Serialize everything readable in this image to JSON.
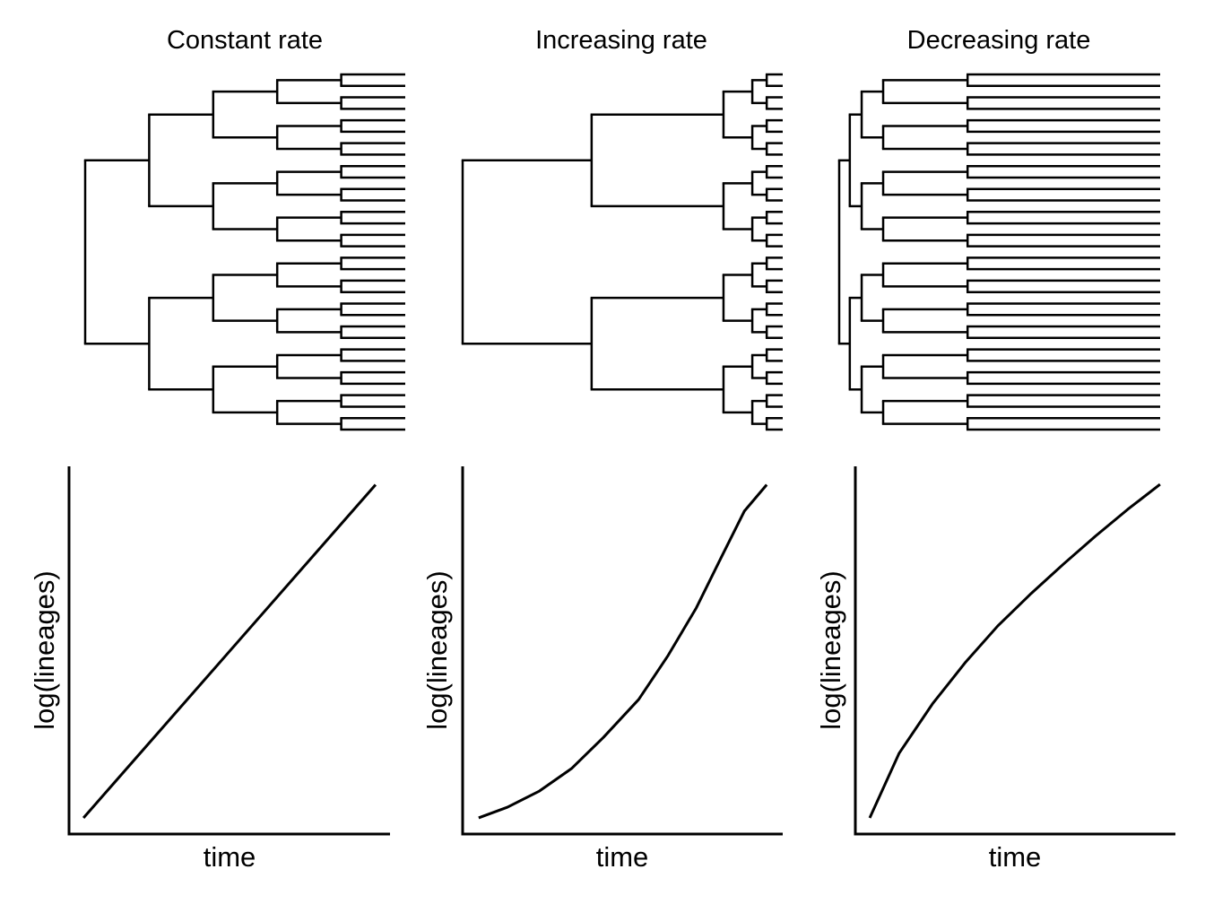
{
  "panels": [
    {
      "title": "Constant rate",
      "tree": {
        "tips": 32,
        "split_times": [
          0,
          0.2,
          0.4,
          0.6,
          0.8
        ]
      },
      "ltt": {
        "xlabel": "time",
        "ylabel": "log(lineages)"
      }
    },
    {
      "title": "Increasing rate",
      "tree": {
        "tips": 32,
        "split_times": [
          0,
          0.403,
          0.815,
          0.905,
          0.95
        ]
      },
      "ltt": {
        "xlabel": "time",
        "ylabel": "log(lineages)",
        "x": [
          0.05,
          0.14,
          0.24,
          0.34,
          0.44,
          0.55,
          0.64,
          0.73,
          0.81,
          0.88,
          0.95
        ],
        "y": [
          0.044,
          0.073,
          0.117,
          0.178,
          0.263,
          0.366,
          0.483,
          0.615,
          0.756,
          0.878,
          0.95
        ]
      }
    },
    {
      "title": "Decreasing rate",
      "tree": {
        "tips": 32,
        "split_times": [
          0,
          0.033,
          0.07,
          0.137,
          0.4
        ]
      },
      "ltt": {
        "xlabel": "time",
        "ylabel": "log(lineages)",
        "x": [
          0.045,
          0.137,
          0.241,
          0.345,
          0.445,
          0.549,
          0.65,
          0.75,
          0.851,
          0.952
        ],
        "y": [
          0.044,
          0.22,
          0.354,
          0.468,
          0.566,
          0.654,
          0.734,
          0.81,
          0.883,
          0.951
        ]
      }
    }
  ],
  "colors": {
    "line": "#000000",
    "background": "#ffffff"
  }
}
